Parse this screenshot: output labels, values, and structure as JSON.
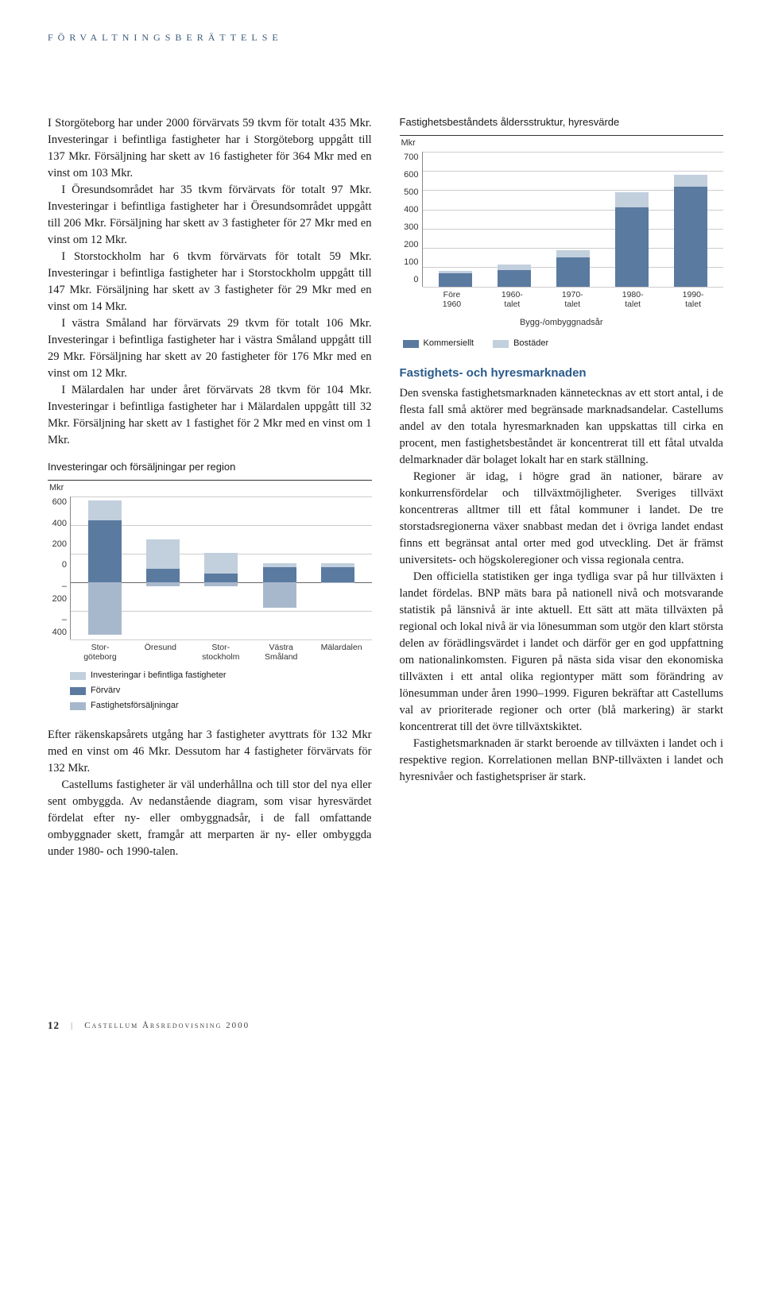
{
  "section_header": "FÖRVALTNINGSBERÄTTELSE",
  "leftcol": {
    "p1": "I Storgöteborg har under 2000 förvärvats 59 tkvm för totalt 435 Mkr. Investeringar i befintliga fastigheter har i Storgöteborg uppgått till 137 Mkr. Försäljning har skett av 16 fastigheter för 364 Mkr med en vinst om 103 Mkr.",
    "p2": "I Öresundsområdet har 35 tkvm förvärvats för totalt 97 Mkr. Investeringar i befintliga fastigheter har i Öresundsområdet uppgått till 206 Mkr. Försäljning har skett av 3 fastigheter för 27 Mkr med en vinst om 12 Mkr.",
    "p3": "I Storstockholm har 6 tkvm förvärvats för totalt 59 Mkr. Investeringar i befintliga fastigheter har i Storstockholm uppgått till 147 Mkr. Försäljning har skett av 3 fastigheter för 29 Mkr med en vinst om 14 Mkr.",
    "p4": "I västra Småland har förvärvats 29 tkvm för totalt 106 Mkr. Investeringar i befintliga fastigheter har i västra Småland uppgått till 29 Mkr. Försäljning har skett av 20 fastigheter för 176 Mkr med en vinst om 12 Mkr.",
    "p5": "I Mälardalen har under året förvärvats 28 tkvm för 104 Mkr. Investeringar i befintliga fastigheter har i Mälardalen uppgått till 32 Mkr. Försäljning har skett av 1 fastighet för 2 Mkr med en vinst om 1 Mkr.",
    "p6": "Efter räkenskapsårets utgång har 3 fastigheter avyttrats för 132 Mkr med en vinst om 46 Mkr. Dessutom har 4 fastigheter förvärvats för 132 Mkr.",
    "p7": "Castellums fastigheter är väl underhållna och till stor del nya eller sent ombyggda. Av nedanstående diagram, som visar hyresvärdet fördelat efter ny- eller ombyggnadsår, i de fall omfattande ombyggnader skett, framgår att merparten är ny- eller ombyggda under 1980- och 1990-talen."
  },
  "chart1": {
    "title": "Investeringar och försäljningar per region",
    "ylabel": "Mkr",
    "ymin": -400,
    "ymax": 600,
    "ystep": 200,
    "yticks": [
      "600",
      "400",
      "200",
      "0",
      "–200",
      "–400"
    ],
    "categories": [
      "Stor-\ngöteborg",
      "Öresund",
      "Stor-\nstockholm",
      "Västra\nSmåland",
      "Mälardalen"
    ],
    "series": [
      {
        "name": "Investeringar i befintliga fastigheter",
        "color": "#c2cfdd",
        "values": [
          137,
          206,
          147,
          29,
          32
        ]
      },
      {
        "name": "Förvärv",
        "color": "#5a7aa0",
        "values": [
          435,
          97,
          59,
          106,
          104
        ]
      },
      {
        "name": "Fastighetsförsäljningar",
        "color": "#a8b8cc",
        "values": [
          -364,
          -27,
          -29,
          -176,
          -2
        ]
      }
    ],
    "legend": [
      {
        "label": "Investeringar i befintliga fastigheter",
        "color": "#c2cfdd"
      },
      {
        "label": "Förvärv",
        "color": "#5a7aa0"
      },
      {
        "label": "Fastighetsförsäljningar",
        "color": "#a8b8cc"
      }
    ]
  },
  "chart2": {
    "title": "Fastighetsbeståndets åldersstruktur, hyresvärde",
    "ylabel": "Mkr",
    "ymin": 0,
    "ymax": 700,
    "ystep": 100,
    "yticks": [
      "700",
      "600",
      "500",
      "400",
      "300",
      "200",
      "100",
      "0"
    ],
    "categories": [
      "Före\n1960",
      "1960-\ntalet",
      "1970-\ntalet",
      "1980-\ntalet",
      "1990-\ntalet"
    ],
    "xaxis_label": "Bygg-/ombyggnadsår",
    "series": [
      {
        "name": "Kommersiellt",
        "color": "#5a7aa0",
        "values": [
          70,
          85,
          150,
          410,
          520
        ]
      },
      {
        "name": "Bostäder",
        "color": "#c2cfdd",
        "values": [
          10,
          30,
          40,
          80,
          60
        ]
      }
    ],
    "legend": [
      {
        "label": "Kommersiellt",
        "color": "#5a7aa0"
      },
      {
        "label": "Bostäder",
        "color": "#c2cfdd"
      }
    ]
  },
  "rightcol": {
    "h2": "Fastighets- och hyresmarknaden",
    "p1": "Den svenska fastighetsmarknaden kännetecknas av ett stort antal, i de flesta fall små aktörer med begränsade marknadsandelar. Castellums andel av den totala hyresmarknaden kan uppskattas till cirka en procent, men fastighetsbeståndet är koncentrerat till ett fåtal utvalda delmarknader där bolaget lokalt har en stark ställning.",
    "p2": "Regioner är idag, i högre grad än nationer, bärare av konkurrensfördelar och tillväxtmöjligheter. Sveriges tillväxt koncentreras alltmer till ett fåtal kommuner i landet. De tre storstadsregionerna växer snabbast medan det i övriga landet endast finns ett begränsat antal orter med god utveckling. Det är främst universitets- och högskoleregioner och vissa regionala centra.",
    "p3": "Den officiella statistiken ger inga tydliga svar på hur tillväxten i landet fördelas. BNP mäts bara på nationell nivå och motsvarande statistik på länsnivå är inte aktuell. Ett sätt att mäta tillväxten på regional och lokal nivå är via lönesumman som utgör den klart största delen av förädlingsvärdet i landet och därför ger en god uppfattning om nationalinkomsten. Figuren på nästa sida visar den ekonomiska tillväxten i ett antal olika regiontyper mätt som förändring av lönesumman under åren 1990–1999. Figuren bekräftar att Castellums val av prioriterade regioner och orter (blå markering) är starkt koncentrerat till det övre tillväxtskiktet.",
    "p4": "Fastighetsmarknaden är starkt beroende av tillväxten i landet och i respektive region. Korrelationen mellan BNP-tillväxten i landet och hyresnivåer och fastighetspriser är stark."
  },
  "footer": {
    "page": "12",
    "text": "Castellum Årsredovisning 2000"
  }
}
